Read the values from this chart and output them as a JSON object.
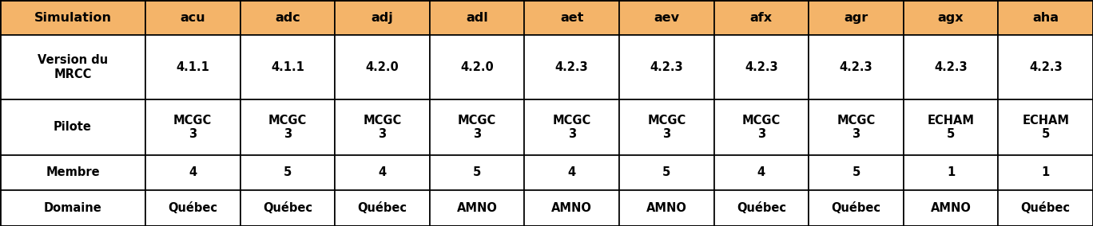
{
  "header_bg": "#F4B469",
  "header_text_color": "#000000",
  "cell_bg": "#FFFFFF",
  "cell_text_color": "#000000",
  "border_color": "#000000",
  "columns": [
    "Simulation",
    "acu",
    "adc",
    "adj",
    "adl",
    "aet",
    "aev",
    "afx",
    "agr",
    "agx",
    "aha"
  ],
  "row_labels": [
    "Version du\nMRCC",
    "Pilote",
    "Membre",
    "Domaine"
  ],
  "rows": {
    "Version du\nMRCC": [
      "4.1.1",
      "4.1.1",
      "4.2.0",
      "4.2.0",
      "4.2.3",
      "4.2.3",
      "4.2.3",
      "4.2.3",
      "4.2.3",
      "4.2.3"
    ],
    "Pilote": [
      "MCGC\n3",
      "MCGC\n3",
      "MCGC\n3",
      "MCGC\n3",
      "MCGC\n3",
      "MCGC\n3",
      "MCGC\n3",
      "MCGC\n3",
      "ECHAM\n5",
      "ECHAM\n5"
    ],
    "Membre": [
      "4",
      "5",
      "4",
      "5",
      "4",
      "5",
      "4",
      "5",
      "1",
      "1"
    ],
    "Domaine": [
      "Québec",
      "Québec",
      "Québec",
      "AMNO",
      "AMNO",
      "AMNO",
      "Québec",
      "Québec",
      "AMNO",
      "Québec"
    ]
  },
  "figsize": [
    13.68,
    2.84
  ],
  "dpi": 100,
  "font_size_header": 11.5,
  "font_size_cell": 10.5,
  "font_size_row_label": 10.5,
  "header_bg_light": "#F5C08A"
}
